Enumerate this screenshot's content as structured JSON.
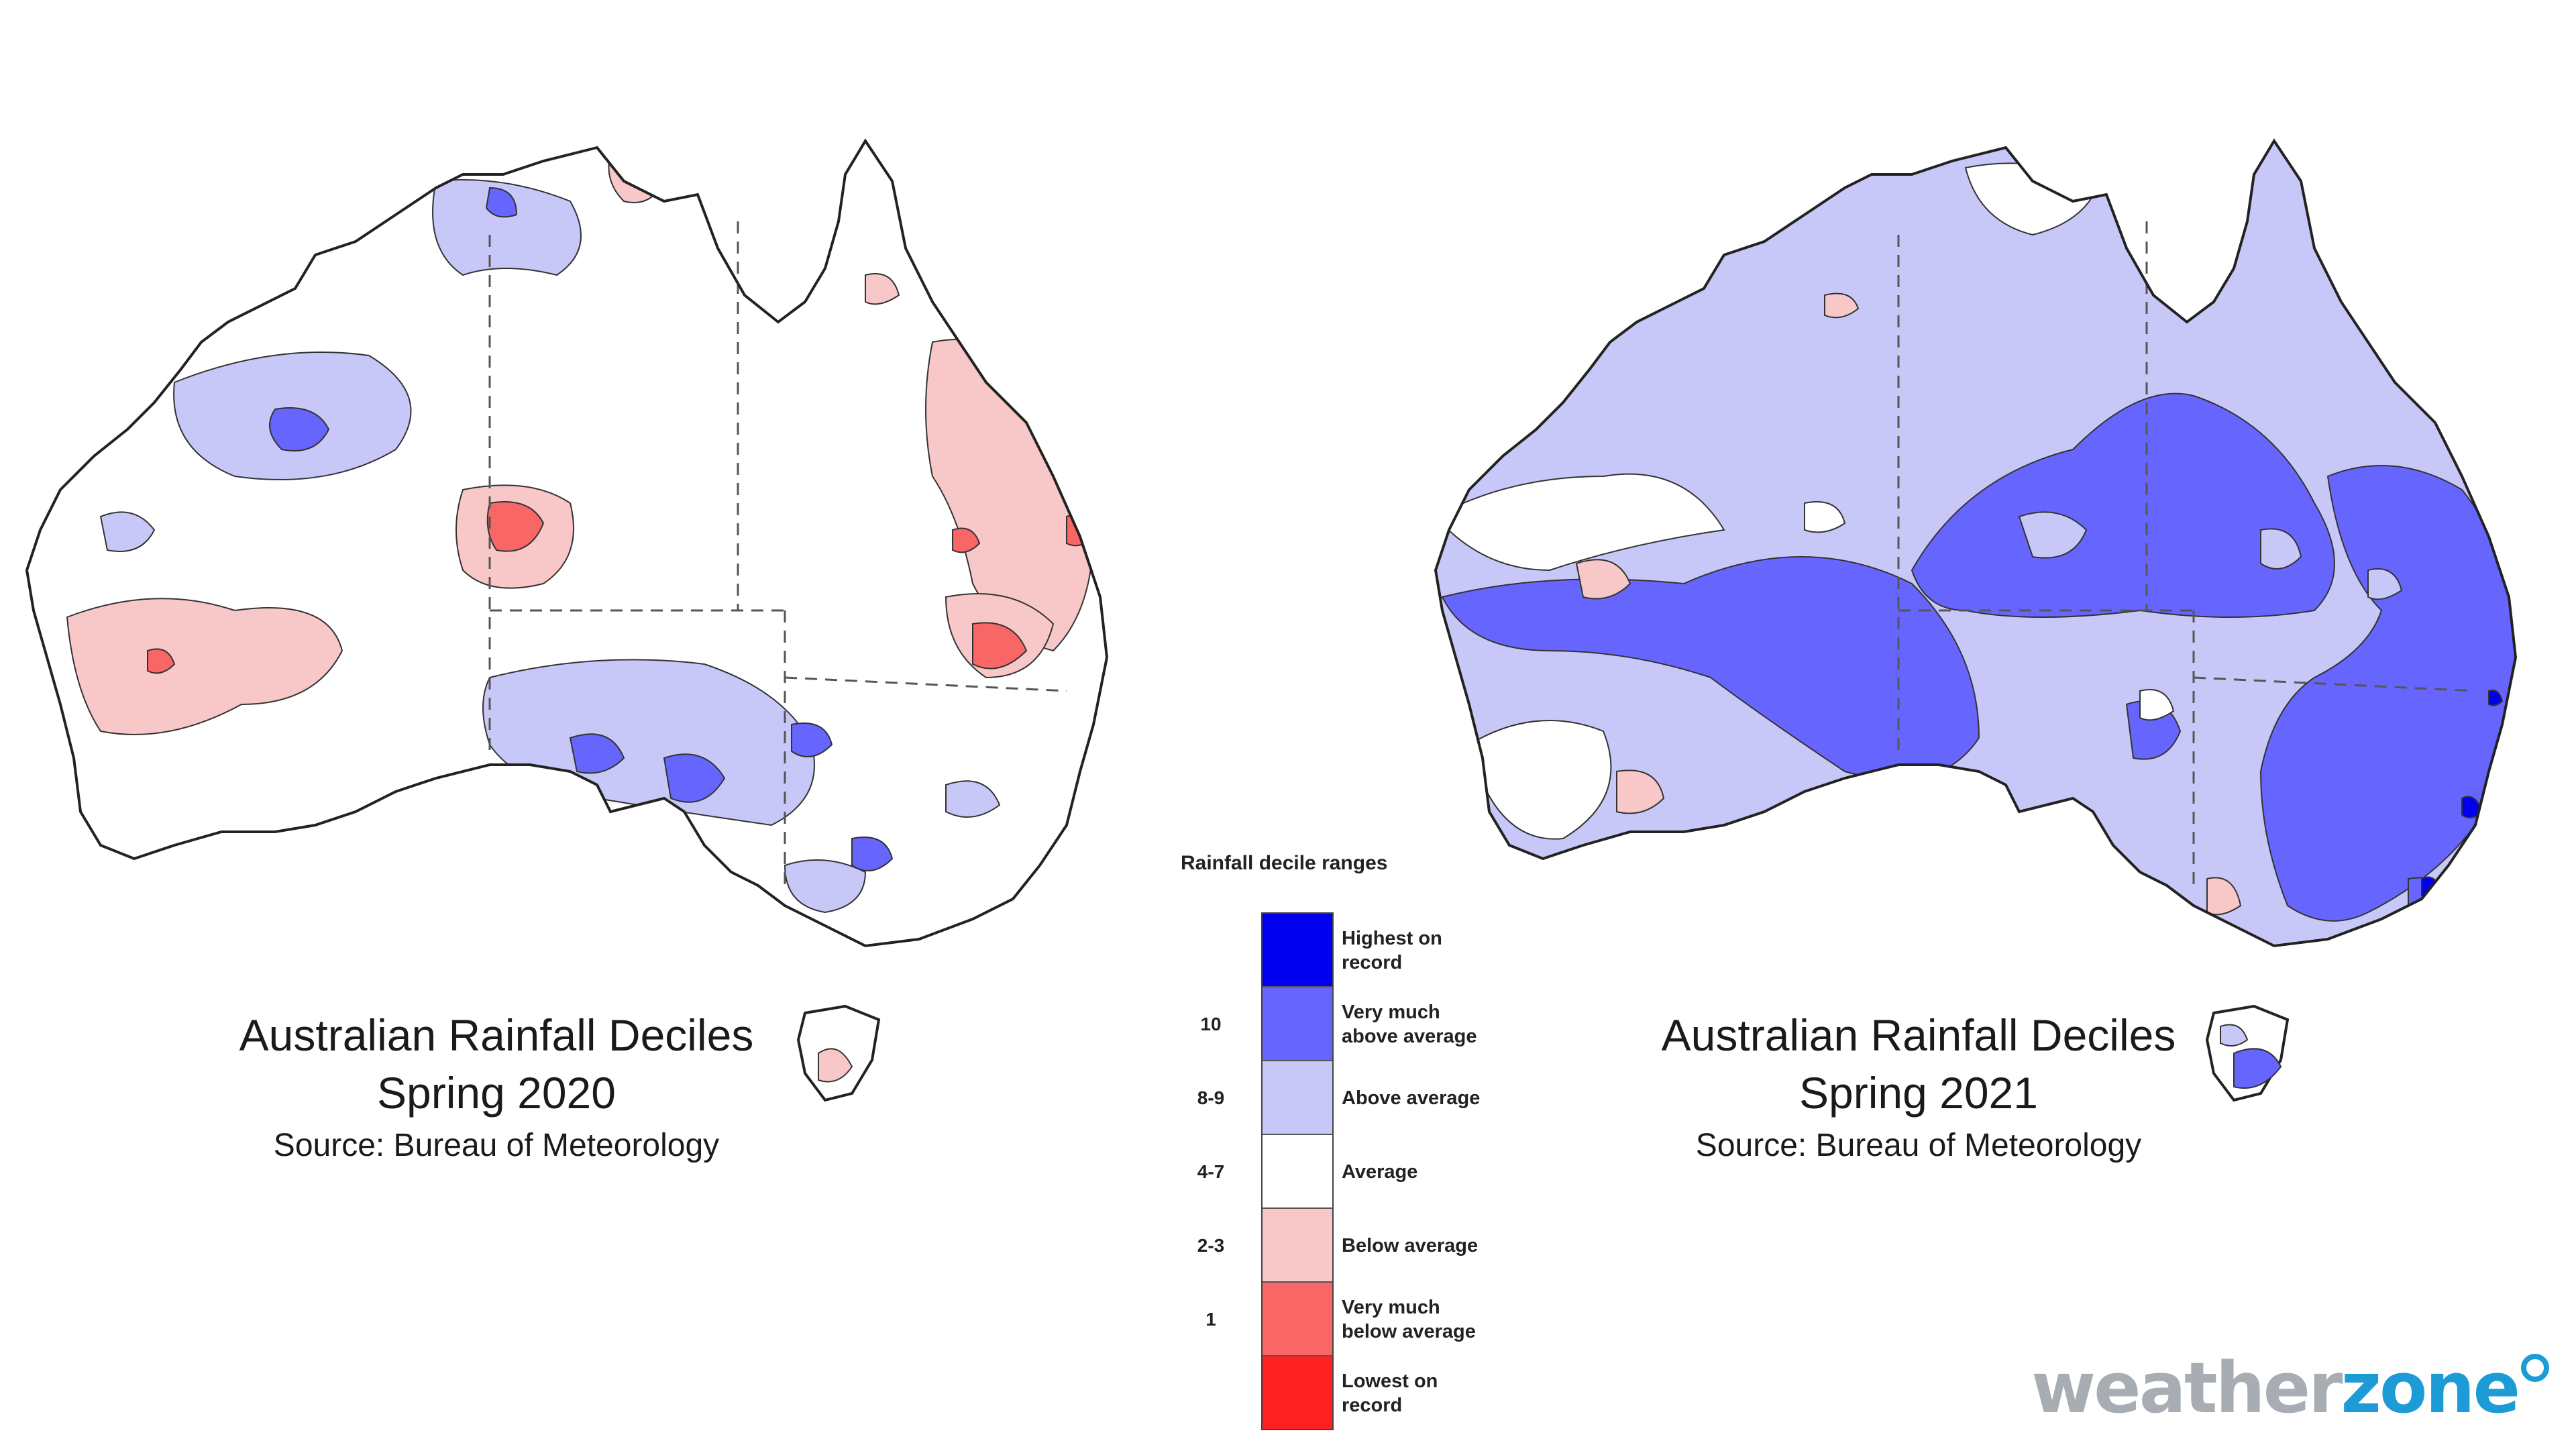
{
  "maps": [
    {
      "title": "Australian Rainfall Deciles",
      "subtitle": "Spring 2020",
      "source": "Source: Bureau of Meteorology"
    },
    {
      "title": "Australian Rainfall Deciles",
      "subtitle": "Spring 2021",
      "source": "Source: Bureau of Meteorology"
    }
  ],
  "legend": {
    "title": "Rainfall decile ranges",
    "categories": [
      {
        "range": "",
        "label_line1": "Highest on",
        "label_line2": "record",
        "color": "#0000ee"
      },
      {
        "range": "10",
        "label_line1": "Very much",
        "label_line2": "above average",
        "color": "#6666ff"
      },
      {
        "range": "8-9",
        "label_line1": "Above average",
        "label_line2": "",
        "color": "#c8c8f8"
      },
      {
        "range": "4-7",
        "label_line1": "Average",
        "label_line2": "",
        "color": "#ffffff"
      },
      {
        "range": "2-3",
        "label_line1": "Below average",
        "label_line2": "",
        "color": "#f8c8c8"
      },
      {
        "range": "1",
        "label_line1": "Very much",
        "label_line2": "below average",
        "color": "#f86666"
      },
      {
        "range": "",
        "label_line1": "Lowest on",
        "label_line2": "record",
        "color": "#ff2020"
      }
    ]
  },
  "brand": {
    "part1": "weather",
    "part2": "zone"
  }
}
